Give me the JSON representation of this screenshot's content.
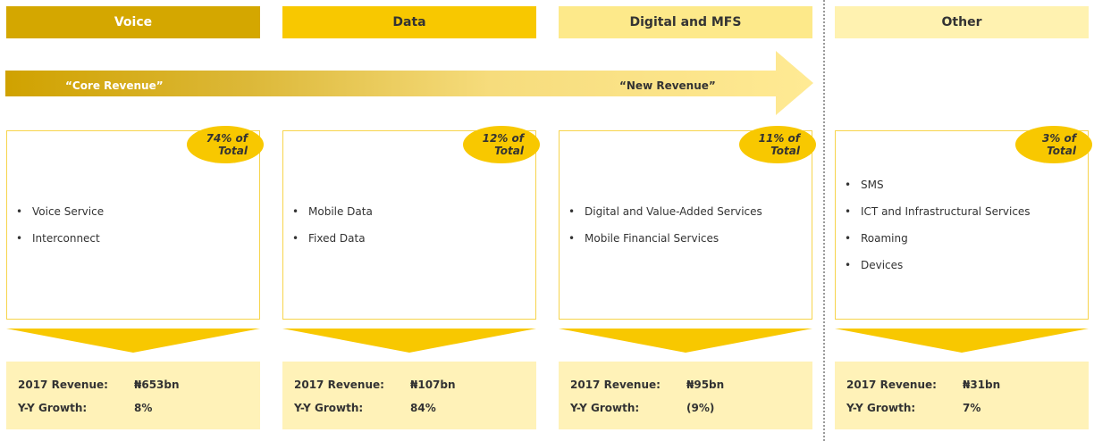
{
  "arrow": {
    "left_label": "“Core Revenue”",
    "right_label": "“New Revenue”"
  },
  "columns": [
    {
      "header": "Voice",
      "header_bg": "#d4a700",
      "header_color": "#ffffff",
      "share": [
        "74% of",
        "Total"
      ],
      "items": [
        "Voice Service",
        "Interconnect"
      ],
      "revenue_label": "2017 Revenue:",
      "revenue_value": "₦653bn",
      "growth_label": "Y-Y Growth:",
      "growth_value": "8%"
    },
    {
      "header": "Data",
      "header_bg": "#f8c800",
      "header_color": "#333333",
      "share": [
        "12% of",
        "Total"
      ],
      "items": [
        "Mobile Data",
        "Fixed Data"
      ],
      "revenue_label": "2017 Revenue:",
      "revenue_value": "₦107bn",
      "growth_label": "Y-Y Growth:",
      "growth_value": "84%"
    },
    {
      "header": "Digital and MFS",
      "header_bg": "#fde98a",
      "header_color": "#333333",
      "share": [
        "11% of",
        "Total"
      ],
      "items": [
        "Digital and Value-Added Services",
        "Mobile Financial Services"
      ],
      "revenue_label": "2017 Revenue:",
      "revenue_value": "₦95bn",
      "growth_label": "Y-Y Growth:",
      "growth_value": "(9%)"
    },
    {
      "header": "Other",
      "header_bg": "#fff2b0",
      "header_color": "#333333",
      "share": [
        "3% of",
        "Total"
      ],
      "items": [
        "SMS",
        "ICT and Infrastructural Services",
        "Roaming",
        "Devices"
      ],
      "revenue_label": "2017 Revenue:",
      "revenue_value": "₦31bn",
      "growth_label": "Y-Y Growth:",
      "growth_value": "7%"
    }
  ],
  "colors": {
    "gold": "#d4a700",
    "yellow": "#f8c800",
    "light_yellow": "#fff2b8"
  }
}
